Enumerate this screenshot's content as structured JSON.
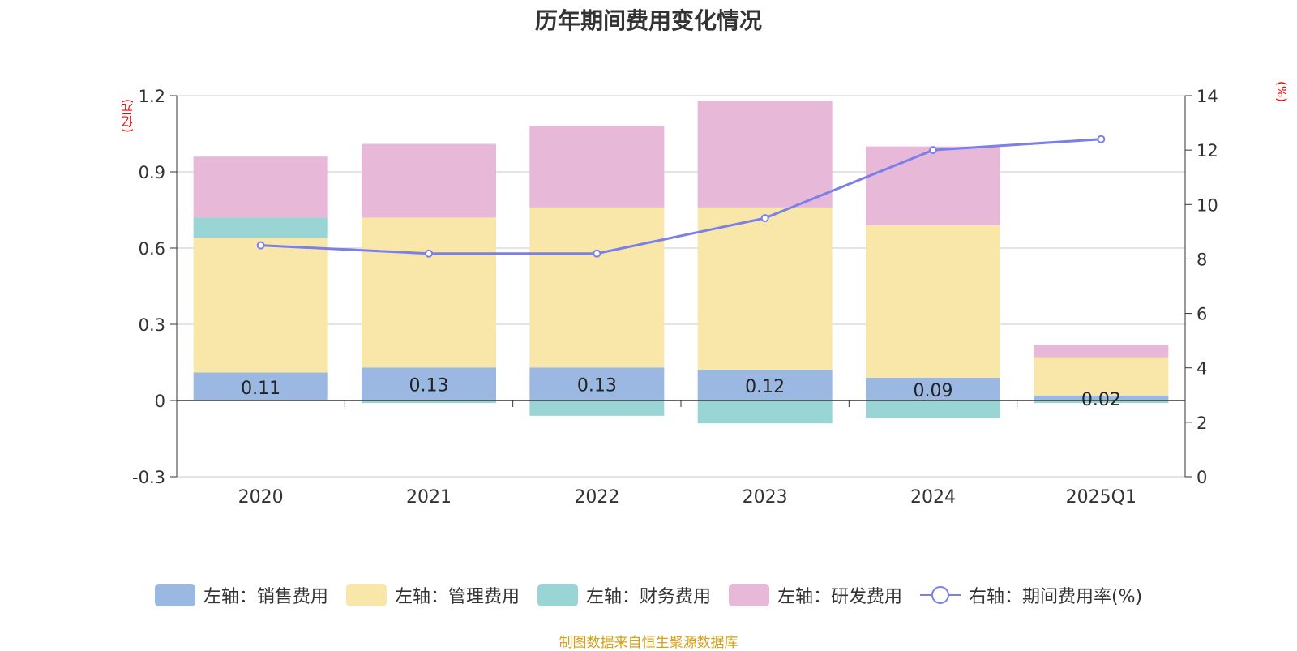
{
  "chart_data": {
    "type": "bar",
    "stacked": true,
    "title": "历年期间费用变化情况",
    "categories": [
      "2020",
      "2021",
      "2022",
      "2023",
      "2024",
      "2025Q1"
    ],
    "left_axis": {
      "unit": "(亿元)",
      "ylim": [
        -0.3,
        1.2
      ],
      "ticks": [
        "1.2",
        "0.9",
        "0.6",
        "0.3",
        "0",
        "-0.3"
      ]
    },
    "right_axis": {
      "unit": "(%)",
      "ylim": [
        0,
        14
      ],
      "ticks": [
        "14",
        "12",
        "10",
        "8",
        "6",
        "4",
        "2",
        "0"
      ]
    },
    "series": [
      {
        "name": "左轴：销售费用",
        "axis": "left",
        "color": "#9bb8e3",
        "values": [
          0.11,
          0.13,
          0.13,
          0.12,
          0.09,
          0.02
        ],
        "labels": [
          "0.11",
          "0.13",
          "0.13",
          "0.12",
          "0.09",
          "0.02"
        ]
      },
      {
        "name": "左轴：管理费用",
        "axis": "left",
        "color": "#f8e7a8",
        "values": [
          0.53,
          0.59,
          0.63,
          0.64,
          0.6,
          0.15
        ]
      },
      {
        "name": "左轴：财务费用",
        "axis": "left",
        "color": "#98d5d4",
        "values": [
          0.08,
          -0.01,
          -0.06,
          -0.09,
          -0.07,
          -0.01
        ]
      },
      {
        "name": "左轴：研发费用",
        "axis": "left",
        "color": "#e8b8d9",
        "values": [
          0.24,
          0.29,
          0.32,
          0.42,
          0.31,
          0.05
        ]
      },
      {
        "name": "右轴：期间费用率(%)",
        "axis": "right",
        "type": "line",
        "color": "#7b7fe8",
        "values": [
          8.5,
          8.2,
          8.2,
          9.5,
          12.0,
          12.4
        ]
      }
    ]
  },
  "source": "制图数据来自恒生聚源数据库"
}
